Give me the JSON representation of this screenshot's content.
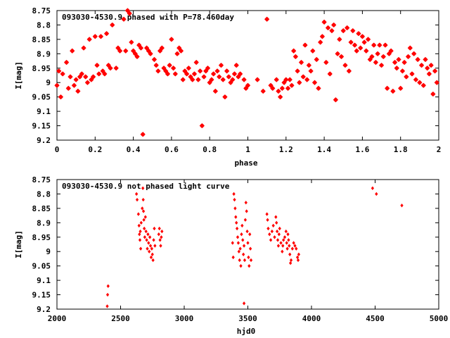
{
  "chart_data": [
    {
      "type": "scatter",
      "title": "093030-4530.9 phased with P=78.460day",
      "xlabel": "phase",
      "ylabel": "I[mag]",
      "xlim": [
        0,
        2
      ],
      "ylim": [
        8.75,
        9.2
      ],
      "y_inverted": true,
      "xticks": [
        "0",
        "0.2",
        "0.4",
        "0.6",
        "0.8",
        "1",
        "1.2",
        "1.4",
        "1.6",
        "1.8",
        "2"
      ],
      "yticks": [
        "8.75",
        "8.8",
        "8.85",
        "8.9",
        "8.95",
        "9",
        "9.05",
        "9.1",
        "9.15",
        "9.2"
      ],
      "grid": false,
      "marker_color": "#ff0000",
      "points": [
        [
          0.0,
          9.01
        ],
        [
          0.01,
          8.96
        ],
        [
          0.02,
          9.05
        ],
        [
          0.03,
          8.97
        ],
        [
          0.05,
          8.93
        ],
        [
          0.06,
          9.02
        ],
        [
          0.07,
          8.98
        ],
        [
          0.08,
          8.89
        ],
        [
          0.09,
          9.01
        ],
        [
          0.1,
          8.99
        ],
        [
          0.11,
          9.03
        ],
        [
          0.12,
          8.98
        ],
        [
          0.13,
          8.97
        ],
        [
          0.14,
          8.88
        ],
        [
          0.15,
          8.98
        ],
        [
          0.16,
          9.0
        ],
        [
          0.17,
          8.85
        ],
        [
          0.18,
          8.99
        ],
        [
          0.19,
          8.98
        ],
        [
          0.2,
          8.84
        ],
        [
          0.21,
          8.94
        ],
        [
          0.22,
          8.97
        ],
        [
          0.23,
          8.84
        ],
        [
          0.24,
          8.96
        ],
        [
          0.25,
          8.97
        ],
        [
          0.26,
          8.83
        ],
        [
          0.27,
          8.94
        ],
        [
          0.28,
          8.95
        ],
        [
          0.29,
          8.8
        ],
        [
          0.31,
          8.95
        ],
        [
          0.32,
          8.88
        ],
        [
          0.33,
          8.89
        ],
        [
          0.35,
          8.78
        ],
        [
          0.36,
          8.89
        ],
        [
          0.37,
          8.75
        ],
        [
          0.38,
          8.76
        ],
        [
          0.39,
          8.86
        ],
        [
          0.4,
          8.89
        ],
        [
          0.41,
          8.9
        ],
        [
          0.42,
          8.91
        ],
        [
          0.43,
          8.87
        ],
        [
          0.44,
          8.88
        ],
        [
          0.45,
          9.18
        ],
        [
          0.47,
          8.88
        ],
        [
          0.48,
          8.89
        ],
        [
          0.49,
          8.9
        ],
        [
          0.51,
          8.92
        ],
        [
          0.52,
          8.94
        ],
        [
          0.53,
          8.96
        ],
        [
          0.54,
          8.89
        ],
        [
          0.55,
          8.88
        ],
        [
          0.56,
          8.95
        ],
        [
          0.57,
          8.96
        ],
        [
          0.58,
          8.97
        ],
        [
          0.59,
          8.94
        ],
        [
          0.6,
          8.85
        ],
        [
          0.61,
          8.95
        ],
        [
          0.62,
          8.97
        ],
        [
          0.63,
          8.9
        ],
        [
          0.64,
          8.88
        ],
        [
          0.65,
          8.89
        ],
        [
          0.66,
          8.99
        ],
        [
          0.67,
          8.96
        ],
        [
          0.68,
          8.97
        ],
        [
          0.69,
          8.95
        ],
        [
          0.7,
          8.98
        ],
        [
          0.71,
          8.99
        ],
        [
          0.72,
          8.97
        ],
        [
          0.73,
          8.93
        ],
        [
          0.74,
          8.99
        ],
        [
          0.75,
          8.96
        ],
        [
          0.76,
          9.15
        ],
        [
          0.77,
          8.98
        ],
        [
          0.78,
          8.96
        ],
        [
          0.79,
          8.95
        ],
        [
          0.8,
          9.0
        ],
        [
          0.81,
          8.99
        ],
        [
          0.82,
          8.97
        ],
        [
          0.83,
          9.03
        ],
        [
          0.84,
          8.96
        ],
        [
          0.85,
          8.98
        ],
        [
          0.86,
          8.94
        ],
        [
          0.87,
          8.99
        ],
        [
          0.88,
          9.05
        ],
        [
          0.89,
          8.96
        ],
        [
          0.9,
          8.98
        ],
        [
          0.91,
          9.0
        ],
        [
          0.92,
          8.99
        ],
        [
          0.93,
          8.97
        ],
        [
          0.94,
          8.94
        ],
        [
          0.95,
          8.98
        ],
        [
          0.96,
          8.97
        ],
        [
          0.98,
          8.99
        ],
        [
          0.99,
          9.02
        ],
        [
          1.0,
          9.01
        ],
        [
          1.05,
          8.99
        ],
        [
          1.08,
          9.03
        ],
        [
          1.1,
          8.78
        ],
        [
          1.12,
          9.01
        ],
        [
          1.13,
          9.02
        ],
        [
          1.15,
          8.99
        ],
        [
          1.16,
          9.03
        ],
        [
          1.17,
          9.05
        ],
        [
          1.18,
          9.02
        ],
        [
          1.19,
          9.0
        ],
        [
          1.2,
          8.99
        ],
        [
          1.21,
          9.02
        ],
        [
          1.22,
          8.99
        ],
        [
          1.23,
          9.01
        ],
        [
          1.24,
          8.89
        ],
        [
          1.25,
          8.91
        ],
        [
          1.26,
          8.96
        ],
        [
          1.27,
          9.0
        ],
        [
          1.28,
          8.93
        ],
        [
          1.29,
          8.98
        ],
        [
          1.3,
          8.87
        ],
        [
          1.31,
          8.99
        ],
        [
          1.32,
          8.94
        ],
        [
          1.33,
          8.96
        ],
        [
          1.34,
          8.89
        ],
        [
          1.35,
          9.0
        ],
        [
          1.36,
          8.92
        ],
        [
          1.37,
          9.02
        ],
        [
          1.38,
          8.86
        ],
        [
          1.39,
          8.84
        ],
        [
          1.4,
          8.79
        ],
        [
          1.41,
          8.93
        ],
        [
          1.42,
          8.81
        ],
        [
          1.43,
          8.97
        ],
        [
          1.44,
          8.82
        ],
        [
          1.45,
          8.8
        ],
        [
          1.46,
          9.06
        ],
        [
          1.47,
          8.9
        ],
        [
          1.48,
          8.85
        ],
        [
          1.49,
          8.91
        ],
        [
          1.5,
          8.82
        ],
        [
          1.51,
          8.94
        ],
        [
          1.52,
          8.81
        ],
        [
          1.53,
          8.96
        ],
        [
          1.54,
          8.86
        ],
        [
          1.55,
          8.82
        ],
        [
          1.56,
          8.87
        ],
        [
          1.57,
          8.89
        ],
        [
          1.58,
          8.83
        ],
        [
          1.59,
          8.88
        ],
        [
          1.6,
          8.84
        ],
        [
          1.61,
          8.86
        ],
        [
          1.62,
          8.89
        ],
        [
          1.63,
          8.85
        ],
        [
          1.64,
          8.92
        ],
        [
          1.65,
          8.91
        ],
        [
          1.66,
          8.87
        ],
        [
          1.67,
          8.93
        ],
        [
          1.68,
          8.9
        ],
        [
          1.69,
          8.87
        ],
        [
          1.7,
          8.94
        ],
        [
          1.71,
          8.91
        ],
        [
          1.72,
          8.87
        ],
        [
          1.73,
          9.02
        ],
        [
          1.74,
          8.9
        ],
        [
          1.75,
          8.89
        ],
        [
          1.76,
          9.03
        ],
        [
          1.77,
          8.93
        ],
        [
          1.78,
          8.95
        ],
        [
          1.79,
          8.92
        ],
        [
          1.8,
          9.02
        ],
        [
          1.81,
          8.96
        ],
        [
          1.82,
          8.93
        ],
        [
          1.83,
          8.98
        ],
        [
          1.84,
          8.91
        ],
        [
          1.85,
          8.88
        ],
        [
          1.86,
          8.97
        ],
        [
          1.87,
          8.9
        ],
        [
          1.88,
          8.99
        ],
        [
          1.89,
          8.92
        ],
        [
          1.9,
          9.0
        ],
        [
          1.91,
          8.94
        ],
        [
          1.92,
          9.01
        ],
        [
          1.93,
          8.92
        ],
        [
          1.94,
          8.95
        ],
        [
          1.95,
          8.97
        ],
        [
          1.96,
          8.94
        ],
        [
          1.97,
          9.04
        ],
        [
          1.98,
          8.96
        ],
        [
          1.99,
          9.0
        ]
      ]
    },
    {
      "type": "scatter",
      "title": "093030-4530.9 not phased light curve",
      "xlabel": "hjd0",
      "ylabel": "I[mag]",
      "xlim": [
        2000,
        5000
      ],
      "ylim": [
        8.75,
        9.2
      ],
      "y_inverted": true,
      "xticks": [
        "2000",
        "2500",
        "3000",
        "3500",
        "4000",
        "4500",
        "5000"
      ],
      "yticks": [
        "8.75",
        "8.8",
        "8.85",
        "8.9",
        "8.95",
        "9",
        "9.05",
        "9.1",
        "9.15",
        "9.2"
      ],
      "grid": false,
      "marker_color": "#ff0000",
      "points": [
        [
          2395,
          9.19
        ],
        [
          2398,
          9.15
        ],
        [
          2402,
          9.12
        ],
        [
          2625,
          8.8
        ],
        [
          2630,
          8.82
        ],
        [
          2640,
          8.87
        ],
        [
          2645,
          8.91
        ],
        [
          2648,
          8.94
        ],
        [
          2652,
          8.96
        ],
        [
          2655,
          8.93
        ],
        [
          2658,
          8.99
        ],
        [
          2662,
          8.9
        ],
        [
          2670,
          8.85
        ],
        [
          2675,
          8.78
        ],
        [
          2678,
          8.82
        ],
        [
          2680,
          8.86
        ],
        [
          2683,
          8.89
        ],
        [
          2686,
          8.92
        ],
        [
          2690,
          8.95
        ],
        [
          2695,
          8.88
        ],
        [
          2700,
          8.93
        ],
        [
          2705,
          8.96
        ],
        [
          2710,
          8.99
        ],
        [
          2715,
          8.94
        ],
        [
          2720,
          8.97
        ],
        [
          2725,
          9.0
        ],
        [
          2730,
          8.95
        ],
        [
          2735,
          8.98
        ],
        [
          2740,
          9.02
        ],
        [
          2745,
          8.99
        ],
        [
          2750,
          9.01
        ],
        [
          2755,
          9.03
        ],
        [
          2760,
          8.96
        ],
        [
          2765,
          8.92
        ],
        [
          2770,
          8.98
        ],
        [
          2800,
          8.94
        ],
        [
          2805,
          8.92
        ],
        [
          2810,
          8.96
        ],
        [
          2815,
          8.98
        ],
        [
          2820,
          8.95
        ],
        [
          2825,
          8.93
        ],
        [
          3380,
          8.97
        ],
        [
          3385,
          9.02
        ],
        [
          3390,
          8.8
        ],
        [
          3395,
          8.82
        ],
        [
          3400,
          8.85
        ],
        [
          3405,
          8.88
        ],
        [
          3410,
          8.9
        ],
        [
          3415,
          8.92
        ],
        [
          3420,
          8.95
        ],
        [
          3425,
          8.97
        ],
        [
          3430,
          9.0
        ],
        [
          3435,
          9.03
        ],
        [
          3440,
          8.99
        ],
        [
          3445,
          9.05
        ],
        [
          3450,
          8.94
        ],
        [
          3455,
          8.91
        ],
        [
          3460,
          8.96
        ],
        [
          3465,
          9.01
        ],
        [
          3470,
          8.98
        ],
        [
          3475,
          9.03
        ],
        [
          3480,
          8.89
        ],
        [
          3485,
          8.83
        ],
        [
          3490,
          8.86
        ],
        [
          3495,
          8.93
        ],
        [
          3500,
          8.97
        ],
        [
          3505,
          9.02
        ],
        [
          3510,
          9.05
        ],
        [
          3515,
          8.94
        ],
        [
          3520,
          8.99
        ],
        [
          3525,
          9.03
        ],
        [
          3470,
          9.18
        ],
        [
          3650,
          8.87
        ],
        [
          3655,
          8.89
        ],
        [
          3660,
          8.92
        ],
        [
          3670,
          8.94
        ],
        [
          3680,
          8.96
        ],
        [
          3690,
          8.93
        ],
        [
          3700,
          8.91
        ],
        [
          3710,
          8.95
        ],
        [
          3720,
          8.88
        ],
        [
          3725,
          8.9
        ],
        [
          3730,
          8.93
        ],
        [
          3735,
          8.96
        ],
        [
          3740,
          8.98
        ],
        [
          3745,
          8.94
        ],
        [
          3750,
          8.92
        ],
        [
          3760,
          8.97
        ],
        [
          3770,
          9.0
        ],
        [
          3775,
          8.98
        ],
        [
          3780,
          8.96
        ],
        [
          3790,
          8.95
        ],
        [
          3800,
          8.93
        ],
        [
          3805,
          8.97
        ],
        [
          3810,
          8.99
        ],
        [
          3815,
          8.94
        ],
        [
          3820,
          8.96
        ],
        [
          3825,
          8.98
        ],
        [
          3830,
          9.01
        ],
        [
          3835,
          9.04
        ],
        [
          3840,
          9.03
        ],
        [
          3850,
          8.99
        ],
        [
          3860,
          8.97
        ],
        [
          3870,
          8.98
        ],
        [
          3880,
          8.99
        ],
        [
          3890,
          9.02
        ],
        [
          3895,
          9.03
        ],
        [
          3900,
          9.01
        ],
        [
          4480,
          8.78
        ],
        [
          4510,
          8.8
        ],
        [
          4710,
          8.84
        ]
      ]
    }
  ]
}
